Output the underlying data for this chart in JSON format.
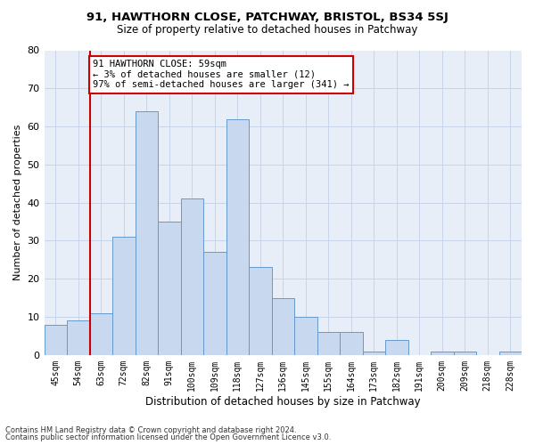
{
  "title1": "91, HAWTHORN CLOSE, PATCHWAY, BRISTOL, BS34 5SJ",
  "title2": "Size of property relative to detached houses in Patchway",
  "xlabel": "Distribution of detached houses by size in Patchway",
  "ylabel": "Number of detached properties",
  "categories": [
    "45sqm",
    "54sqm",
    "63sqm",
    "72sqm",
    "82sqm",
    "91sqm",
    "100sqm",
    "109sqm",
    "118sqm",
    "127sqm",
    "136sqm",
    "145sqm",
    "155sqm",
    "164sqm",
    "173sqm",
    "182sqm",
    "191sqm",
    "200sqm",
    "209sqm",
    "218sqm",
    "228sqm"
  ],
  "values": [
    8,
    9,
    11,
    31,
    64,
    35,
    41,
    27,
    62,
    23,
    15,
    10,
    6,
    6,
    1,
    4,
    0,
    1,
    1,
    0,
    1
  ],
  "bar_color": "#c8d8ef",
  "bar_edge_color": "#6699cc",
  "vline_color": "#cc0000",
  "annotation_text": "91 HAWTHORN CLOSE: 59sqm\n← 3% of detached houses are smaller (12)\n97% of semi-detached houses are larger (341) →",
  "annotation_box_color": "white",
  "annotation_box_edge_color": "#cc0000",
  "ylim": [
    0,
    80
  ],
  "yticks": [
    0,
    10,
    20,
    30,
    40,
    50,
    60,
    70,
    80
  ],
  "grid_color": "#c8d4e8",
  "background_color": "#e8eef8",
  "footer1": "Contains HM Land Registry data © Crown copyright and database right 2024.",
  "footer2": "Contains public sector information licensed under the Open Government Licence v3.0."
}
